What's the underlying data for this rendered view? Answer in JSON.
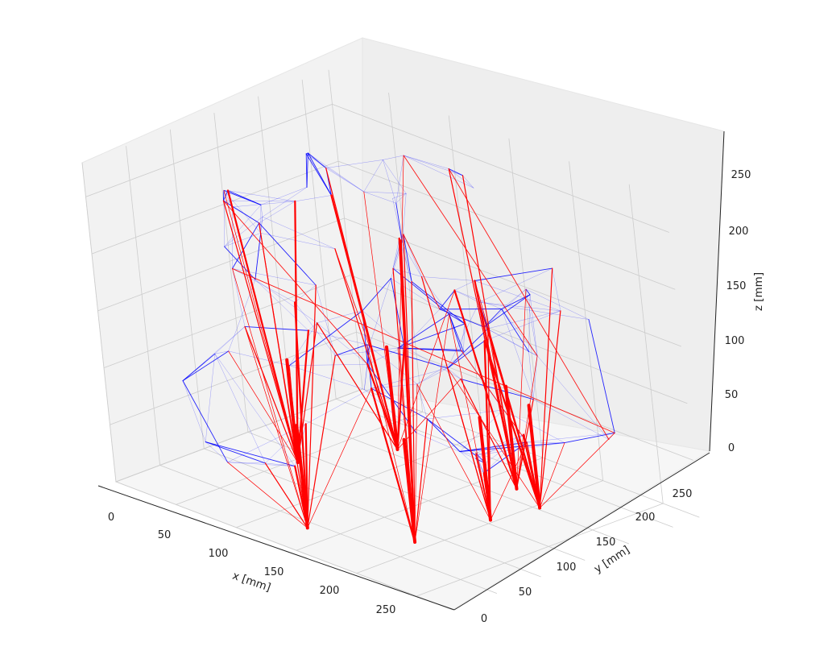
{
  "chart_data": {
    "type": "3d-wireframe",
    "xlabel": "x [mm]",
    "ylabel": "y [mm]",
    "zlabel": "z [mm]",
    "xticks": [
      "0",
      "50",
      "100",
      "150",
      "200",
      "250"
    ],
    "yticks": [
      "0",
      "50",
      "100",
      "150",
      "200",
      "250"
    ],
    "zticks": [
      "0",
      "50",
      "100",
      "150",
      "200",
      "250"
    ],
    "xlim": [
      0,
      280
    ],
    "ylim": [
      0,
      280
    ],
    "zlim": [
      0,
      280
    ],
    "grid": true,
    "legend": "none",
    "colors": {
      "support_members": "#ff0000",
      "lattice_members": "#0000ff",
      "pane": "#f2f2f2",
      "grid": "#cccccc"
    },
    "support_roots_xyz_mm": [
      [
        130,
        40,
        0
      ],
      [
        190,
        80,
        0
      ],
      [
        80,
        100,
        20
      ],
      [
        230,
        170,
        20
      ],
      [
        120,
        160,
        30
      ],
      [
        210,
        140,
        10
      ],
      [
        180,
        210,
        5
      ]
    ]
  }
}
